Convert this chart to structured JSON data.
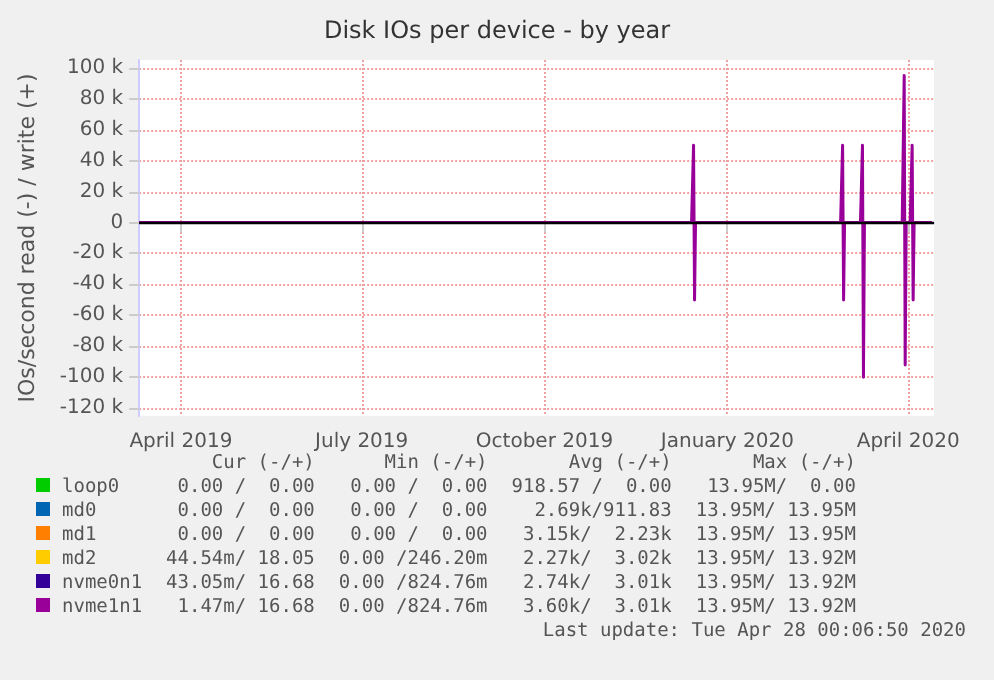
{
  "chart_data": {
    "type": "line",
    "title": "Disk IOs per device - by year",
    "ylabel": "IOs/second read (-) / write (+)",
    "xlim": [
      "2019-03-11",
      "2020-04-14"
    ],
    "xticks": [
      {
        "value": "2019-04-01",
        "label": "April 2019"
      },
      {
        "value": "2019-07-01",
        "label": "July 2019"
      },
      {
        "value": "2019-10-01",
        "label": "October 2019"
      },
      {
        "value": "2020-01-01",
        "label": "January 2020"
      },
      {
        "value": "2020-04-01",
        "label": "April 2020"
      }
    ],
    "ylim": [
      -125000,
      105000
    ],
    "yticks": [
      {
        "value": 100000,
        "label": "100 k"
      },
      {
        "value": 80000,
        "label": "80 k"
      },
      {
        "value": 60000,
        "label": "60 k"
      },
      {
        "value": 40000,
        "label": "40 k"
      },
      {
        "value": 20000,
        "label": "20 k"
      },
      0,
      {
        "value": -20000,
        "label": "-20 k"
      },
      {
        "value": -40000,
        "label": "-40 k"
      },
      {
        "value": -60000,
        "label": "-60 k"
      },
      {
        "value": -80000,
        "label": "-80 k"
      },
      {
        "value": -100000,
        "label": "-100 k"
      },
      {
        "value": -120000,
        "label": "-120 k"
      }
    ],
    "grid": true,
    "legend": "bottom",
    "ref_lines": [
      {
        "axis": "y",
        "value": 0,
        "color": "#000000"
      }
    ],
    "series": [
      {
        "name": "loop0",
        "color": "#00cc00"
      },
      {
        "name": "md0",
        "color": "#0066b3"
      },
      {
        "name": "md1",
        "color": "#ff8000"
      },
      {
        "name": "md2",
        "color": "#ffcc00"
      },
      {
        "name": "nvme0n1",
        "color": "#330099"
      },
      {
        "name": "nvme1n1",
        "color": "#990099",
        "x": [
          "2019-03-11",
          "2019-12-14",
          "2019-12-15",
          "2019-12-15T12:00",
          "2019-12-16",
          "2020-02-27",
          "2020-02-28",
          "2020-02-28T12:00",
          "2020-02-29",
          "2020-03-08",
          "2020-03-09",
          "2020-03-09T12:00",
          "2020-03-10",
          "2020-03-29",
          "2020-03-30",
          "2020-03-30T12:00",
          "2020-03-31",
          "2020-04-02",
          "2020-04-03",
          "2020-04-03T12:00",
          "2020-04-04",
          "2020-04-13"
        ],
        "values": [
          0,
          0,
          50000,
          -50000,
          0,
          0,
          50000,
          -50000,
          0,
          0,
          50000,
          -100000,
          0,
          0,
          95000,
          -92000,
          0,
          0,
          50000,
          -50000,
          0,
          0
        ]
      }
    ],
    "annotations": [
      "Cur (-/+)",
      "Min (-/+)",
      "Avg (-/+)",
      "Max (-/+)",
      "0.00 /  0.00",
      "0.00 /  0.00",
      "918.57 /  0.00",
      "13.95M/  0.00",
      "0.00 /  0.00",
      "0.00 /  0.00",
      "2.69k/911.83",
      "13.95M/ 13.95M",
      "0.00 /  0.00",
      "0.00 /  0.00",
      "3.15k/  2.23k",
      "13.95M/ 13.95M",
      "44.54m/ 18.05",
      "0.00 /246.20m",
      "2.27k/  3.02k",
      "13.95M/ 13.92M",
      "43.05m/ 16.68",
      "0.00 /824.76m",
      "2.74k/  3.01k",
      "13.95M/ 13.92M",
      "1.47m/ 16.68",
      "0.00 /824.76m",
      "3.60k/  3.01k",
      "13.95M/ 13.92M",
      "Last update: Tue Apr 28 00:06:50 2020"
    ]
  }
}
